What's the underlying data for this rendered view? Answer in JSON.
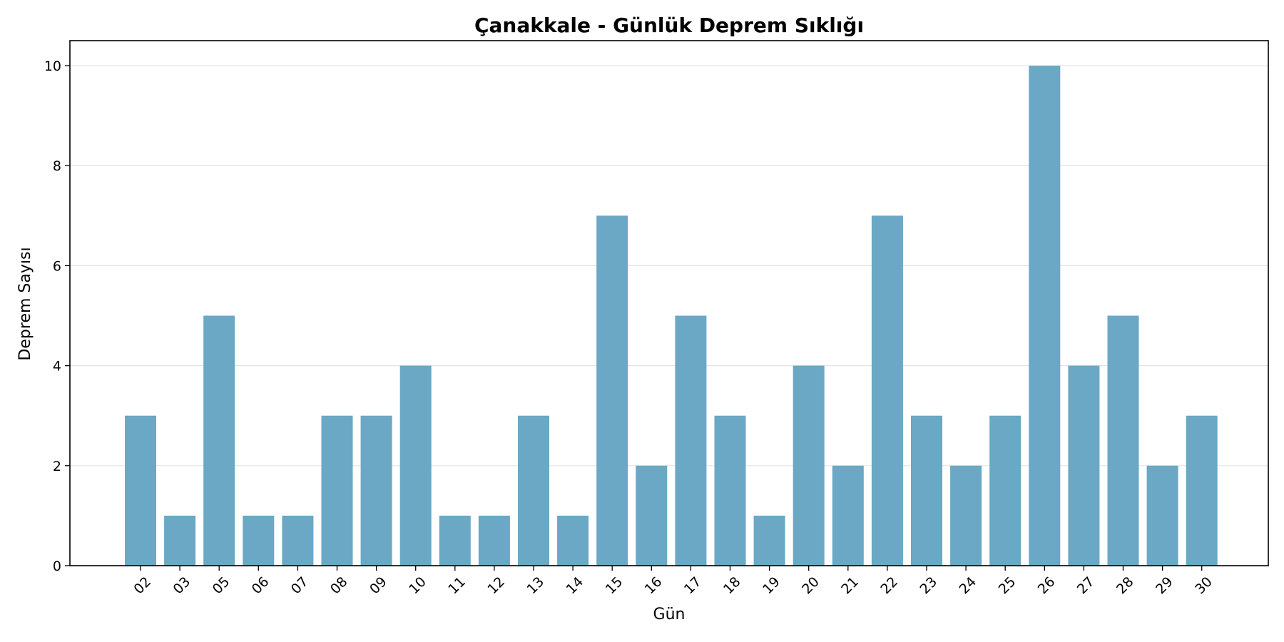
{
  "chart_data": {
    "type": "bar",
    "title": "Çanakkale - Günlük Deprem Sıklığı",
    "xlabel": "Gün",
    "ylabel": "Deprem Sayısı",
    "categories": [
      "02",
      "03",
      "05",
      "06",
      "07",
      "08",
      "09",
      "10",
      "11",
      "12",
      "13",
      "14",
      "15",
      "16",
      "17",
      "18",
      "19",
      "20",
      "21",
      "22",
      "23",
      "24",
      "25",
      "26",
      "27",
      "28",
      "29",
      "30"
    ],
    "values": [
      3,
      1,
      5,
      1,
      1,
      3,
      3,
      4,
      1,
      1,
      3,
      1,
      7,
      2,
      5,
      3,
      1,
      4,
      2,
      7,
      3,
      2,
      3,
      10,
      4,
      5,
      2,
      3
    ],
    "ylim": [
      0,
      10.5
    ],
    "yticks": [
      0,
      2,
      4,
      6,
      8,
      10
    ],
    "grid": "y",
    "bar_color": "#6aa8c5"
  }
}
